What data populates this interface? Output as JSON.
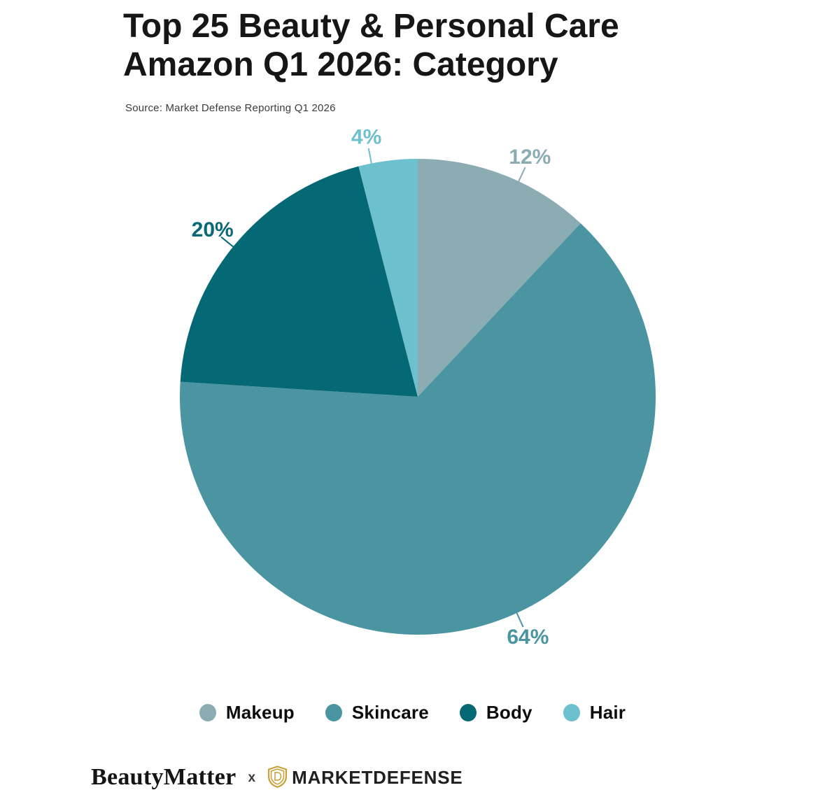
{
  "title": {
    "line1": "Top 25 Beauty & Personal Care",
    "line2": "Amazon Q1 2026: Category"
  },
  "source": "Source: Market Defense Reporting Q1 2026",
  "chart_data": {
    "type": "pie",
    "title": "Top 25 Beauty & Personal Care Amazon Q1 2026: Category",
    "categories": [
      "Makeup",
      "Skincare",
      "Body",
      "Hair"
    ],
    "values": [
      12,
      64,
      20,
      4
    ],
    "total": 100,
    "unit": "%",
    "data_labels": [
      "12%",
      "64%",
      "20%",
      "4%"
    ],
    "colors": [
      "#8aacb2",
      "#4a95a1",
      "#056975",
      "#6dc0cd"
    ],
    "label_colors": [
      "#8aacb2",
      "#4a95a1",
      "#0b6875",
      "#6dc0cd"
    ],
    "start_angle_deg": 0,
    "direction": "clockwise",
    "grid": false,
    "legend_position": "bottom"
  },
  "legend": {
    "items": [
      {
        "label": "Makeup",
        "color": "#8aacb2"
      },
      {
        "label": "Skincare",
        "color": "#4a95a1"
      },
      {
        "label": "Body",
        "color": "#056975"
      },
      {
        "label": "Hair",
        "color": "#6dc0cd"
      }
    ]
  },
  "footer": {
    "brand1": "BeautyMatter",
    "separator": "x",
    "brand2": "MARKETDEFENSE",
    "logo_color": "#c8a13b",
    "logo_icon": "shield-d-icon"
  }
}
